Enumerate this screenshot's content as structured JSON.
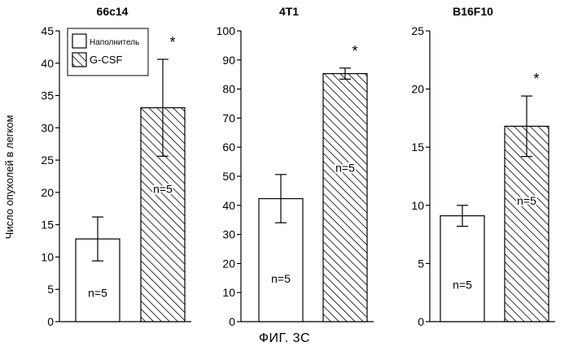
{
  "figure": {
    "ylabel": "Число опухолей в легком",
    "caption": "ФИГ. 3С"
  },
  "legend": {
    "entries": [
      {
        "label": "Наполнитель",
        "pattern": "solid"
      },
      {
        "label": "G-CSF",
        "pattern": "hatched"
      }
    ]
  },
  "colors": {
    "bar_fill": "#ffffff",
    "stroke": "#000000",
    "hatch": "#000000"
  },
  "chart_data": [
    {
      "type": "bar",
      "title": "66c14",
      "categories": [
        "Наполнитель",
        "G-CSF"
      ],
      "values": [
        12.8,
        33.1
      ],
      "error": [
        3.4,
        7.5
      ],
      "bar_labels": [
        "n=5",
        "n=5"
      ],
      "significance": [
        "",
        "*"
      ],
      "ylim": [
        0,
        45
      ],
      "yticks": [
        0,
        5,
        10,
        15,
        20,
        25,
        30,
        35,
        40,
        45
      ],
      "legend": "top-left"
    },
    {
      "type": "bar",
      "title": "4T1",
      "categories": [
        "Наполнитель",
        "G-CSF"
      ],
      "values": [
        42.3,
        85.3
      ],
      "error": [
        8.3,
        1.9
      ],
      "bar_labels": [
        "n=5",
        "n=5"
      ],
      "significance": [
        "",
        "*"
      ],
      "ylim": [
        0,
        100
      ],
      "yticks": [
        0,
        10,
        20,
        30,
        40,
        50,
        60,
        70,
        80,
        90,
        100
      ]
    },
    {
      "type": "bar",
      "title": "B16F10",
      "categories": [
        "Наполнитель",
        "G-CSF"
      ],
      "values": [
        9.1,
        16.8
      ],
      "error": [
        0.9,
        2.6
      ],
      "bar_labels": [
        "n=5",
        "n=5"
      ],
      "significance": [
        "",
        "*"
      ],
      "ylim": [
        0,
        25
      ],
      "yticks": [
        0,
        5,
        10,
        15,
        20,
        25
      ]
    }
  ]
}
